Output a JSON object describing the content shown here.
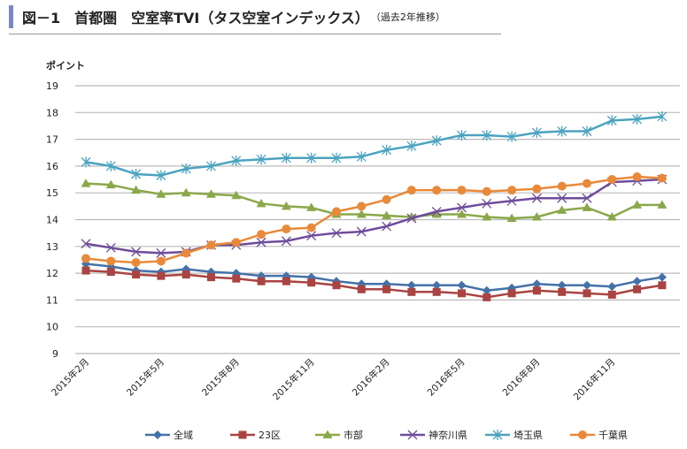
{
  "title": "図－1　首都圏　空室率TVI（タス空室インデックス）",
  "subtitle": "（過去2年推移）",
  "chart_data": {
    "type": "line",
    "title": "図－1　首都圏　空室率TVI（タス空室インデックス）（過去2年推移）",
    "ylabel": "ポイント",
    "xlabel": "",
    "ylim": [
      9,
      19
    ],
    "yticks": [
      9,
      10,
      11,
      12,
      13,
      14,
      15,
      16,
      17,
      18,
      19
    ],
    "grid": true,
    "legend": "bottom",
    "x_tick_labels": [
      "2015年2月",
      "2015年5月",
      "2015年8月",
      "2015年11月",
      "2016年2月",
      "2016年5月",
      "2016年8月",
      "2016年11月"
    ],
    "x_count": 24,
    "series": [
      {
        "name": "全域",
        "color": "#4472a8",
        "marker": "diamond",
        "values": [
          12.35,
          12.25,
          12.1,
          12.05,
          12.15,
          12.05,
          12.0,
          11.9,
          11.9,
          11.85,
          11.7,
          11.6,
          11.6,
          11.55,
          11.55,
          11.55,
          11.35,
          11.45,
          11.6,
          11.55,
          11.55,
          11.5,
          11.7,
          11.85
        ]
      },
      {
        "name": "23区",
        "color": "#a94442",
        "marker": "square",
        "values": [
          12.1,
          12.05,
          11.95,
          11.9,
          11.95,
          11.85,
          11.8,
          11.7,
          11.7,
          11.65,
          11.55,
          11.4,
          11.4,
          11.3,
          11.3,
          11.25,
          11.1,
          11.25,
          11.35,
          11.3,
          11.25,
          11.2,
          11.4,
          11.55
        ]
      },
      {
        "name": "市部",
        "color": "#8aa84a",
        "marker": "triangle",
        "values": [
          15.35,
          15.3,
          15.1,
          14.95,
          15.0,
          14.95,
          14.9,
          14.6,
          14.5,
          14.45,
          14.2,
          14.2,
          14.15,
          14.1,
          14.2,
          14.2,
          14.1,
          14.05,
          14.1,
          14.35,
          14.45,
          14.1,
          14.55,
          14.55
        ]
      },
      {
        "name": "神奈川県",
        "color": "#6e4c9a",
        "marker": "x",
        "values": [
          13.1,
          12.95,
          12.8,
          12.75,
          12.8,
          13.05,
          13.05,
          13.15,
          13.2,
          13.4,
          13.5,
          13.55,
          13.75,
          14.05,
          14.3,
          14.45,
          14.6,
          14.7,
          14.8,
          14.8,
          14.8,
          15.4,
          15.45,
          15.5
        ]
      },
      {
        "name": "埼玉県",
        "color": "#4ba3bf",
        "marker": "star",
        "values": [
          16.15,
          16.0,
          15.7,
          15.65,
          15.9,
          16.0,
          16.2,
          16.25,
          16.3,
          16.3,
          16.3,
          16.35,
          16.6,
          16.75,
          16.95,
          17.15,
          17.15,
          17.1,
          17.25,
          17.3,
          17.3,
          17.7,
          17.75,
          17.85
        ]
      },
      {
        "name": "千葉県",
        "color": "#e88a3a",
        "marker": "circle",
        "values": [
          12.55,
          12.45,
          12.4,
          12.45,
          12.75,
          13.05,
          13.15,
          13.45,
          13.65,
          13.7,
          14.3,
          14.5,
          14.75,
          15.1,
          15.1,
          15.1,
          15.05,
          15.1,
          15.15,
          15.25,
          15.35,
          15.5,
          15.6,
          15.55
        ]
      }
    ]
  }
}
